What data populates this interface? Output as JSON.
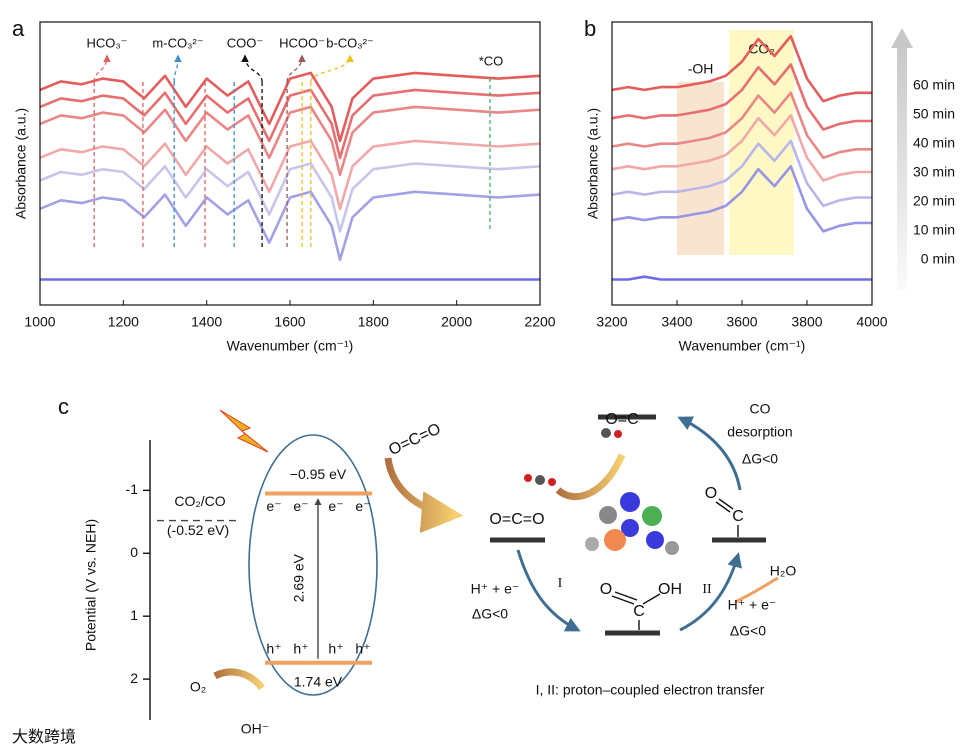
{
  "chart_data": [
    {
      "type": "line",
      "label": "a",
      "xlabel": "Wavenumber (cm⁻¹)",
      "ylabel": "Absorbance (a.u.)",
      "x": [
        1000,
        1050,
        1100,
        1150,
        1200,
        1250,
        1300,
        1350,
        1400,
        1450,
        1500,
        1550,
        1600,
        1650,
        1700,
        1720,
        1750,
        1800,
        1900,
        2000,
        2100,
        2200
      ],
      "xlim": [
        1000,
        2200
      ],
      "xticks": [
        1000,
        1200,
        1400,
        1600,
        1800,
        2000,
        2200
      ],
      "ylim": [
        0,
        10
      ],
      "annotations": [
        {
          "label": "HCO₃⁻",
          "color": "#e06060",
          "x": [
            1130,
            1247,
            1396
          ]
        },
        {
          "label": "m-CO₃²⁻",
          "color": "#3f8fd0",
          "x": [
            1322,
            1466
          ]
        },
        {
          "label": "COO⁻",
          "color": "#111111",
          "x": [
            1533
          ]
        },
        {
          "label": "HCOO⁻",
          "color": "#9a5a5a",
          "x": [
            1593
          ]
        },
        {
          "label": "b-CO₃²⁻",
          "color": "#e8c020",
          "x": [
            1629,
            1650
          ]
        },
        {
          "label": "*CO",
          "color": "#40b070",
          "x": [
            2080
          ]
        }
      ],
      "series": [
        {
          "color": "#e35d5d",
          "values": [
            7.6,
            7.9,
            7.8,
            8.0,
            7.9,
            7.3,
            8.1,
            7.0,
            8.0,
            7.4,
            7.9,
            6.4,
            8.0,
            8.2,
            7.0,
            5.8,
            7.3,
            8.0,
            8.2,
            8.1,
            8.0,
            8.1
          ]
        },
        {
          "color": "#e76f6f",
          "values": [
            7.0,
            7.3,
            7.2,
            7.4,
            7.3,
            6.7,
            7.5,
            6.4,
            7.4,
            6.8,
            7.3,
            5.8,
            7.4,
            7.6,
            6.4,
            5.2,
            6.7,
            7.4,
            7.6,
            7.5,
            7.4,
            7.5
          ]
        },
        {
          "color": "#eb8686",
          "values": [
            6.4,
            6.7,
            6.6,
            6.8,
            6.7,
            6.1,
            6.9,
            5.8,
            6.8,
            6.2,
            6.7,
            5.2,
            6.8,
            7.0,
            5.8,
            4.6,
            6.1,
            6.8,
            7.0,
            6.9,
            6.8,
            6.9
          ]
        },
        {
          "color": "#f0a8a8",
          "values": [
            5.2,
            5.5,
            5.4,
            5.6,
            5.5,
            4.9,
            5.7,
            4.6,
            5.6,
            5.0,
            5.5,
            4.0,
            5.6,
            5.8,
            4.6,
            3.4,
            4.9,
            5.6,
            5.8,
            5.7,
            5.6,
            5.7
          ]
        },
        {
          "color": "#c8c5ec",
          "values": [
            4.4,
            4.7,
            4.6,
            4.8,
            4.7,
            4.1,
            4.9,
            3.8,
            4.8,
            4.2,
            4.7,
            3.2,
            4.8,
            5.0,
            3.8,
            2.6,
            4.1,
            4.8,
            5.0,
            4.9,
            4.8,
            4.9
          ]
        },
        {
          "color": "#a3a1e6",
          "values": [
            3.4,
            3.7,
            3.6,
            3.8,
            3.7,
            3.1,
            3.9,
            2.8,
            3.8,
            3.2,
            3.7,
            2.2,
            3.8,
            4.0,
            2.8,
            1.6,
            3.1,
            3.8,
            4.0,
            3.9,
            3.8,
            3.9
          ]
        },
        {
          "color": "#6d6be6",
          "values": [
            0.9,
            0.9,
            0.9,
            0.9,
            0.9,
            0.9,
            0.9,
            0.9,
            0.9,
            0.9,
            0.9,
            0.9,
            0.9,
            0.9,
            0.9,
            0.9,
            0.9,
            0.9,
            0.9,
            0.9,
            0.9,
            0.9
          ]
        }
      ]
    },
    {
      "type": "line",
      "label": "b",
      "xlabel": "Wavenumber (cm⁻¹)",
      "ylabel": "Absorbance (a.u.)",
      "x": [
        3200,
        3250,
        3300,
        3350,
        3400,
        3450,
        3500,
        3550,
        3600,
        3650,
        3700,
        3750,
        3800,
        3850,
        3900,
        3950,
        4000
      ],
      "xlim": [
        3200,
        4000
      ],
      "xticks": [
        3200,
        3400,
        3600,
        3800,
        4000
      ],
      "ylim": [
        0,
        10
      ],
      "regions": [
        {
          "label": "-OH",
          "range": [
            3400,
            3545
          ],
          "color": "#f9e4d0"
        },
        {
          "label": "CO₂",
          "range": [
            3560,
            3760
          ],
          "color": "#fdf8c4"
        }
      ],
      "series": [
        {
          "name": "60 min",
          "color": "#e35d5d",
          "values": [
            7.6,
            7.7,
            7.6,
            7.7,
            7.7,
            7.8,
            7.9,
            8.1,
            8.6,
            9.4,
            8.8,
            9.5,
            8.0,
            7.2,
            7.4,
            7.5,
            7.5
          ]
        },
        {
          "name": "50 min",
          "color": "#e76f6f",
          "values": [
            6.6,
            6.7,
            6.6,
            6.7,
            6.7,
            6.8,
            6.9,
            7.1,
            7.6,
            8.4,
            7.8,
            8.5,
            7.0,
            6.2,
            6.4,
            6.5,
            6.5
          ]
        },
        {
          "name": "40 min",
          "color": "#eb8686",
          "values": [
            5.6,
            5.7,
            5.6,
            5.7,
            5.7,
            5.8,
            5.9,
            6.1,
            6.6,
            7.4,
            6.8,
            7.5,
            6.0,
            5.2,
            5.4,
            5.5,
            5.5
          ]
        },
        {
          "name": "30 min",
          "color": "#f0a8a8",
          "values": [
            4.8,
            4.9,
            4.8,
            4.9,
            4.9,
            5.0,
            5.1,
            5.3,
            5.8,
            6.6,
            6.0,
            6.7,
            5.2,
            4.4,
            4.6,
            4.7,
            4.7
          ]
        },
        {
          "name": "20 min",
          "color": "#b9b6ea",
          "values": [
            3.9,
            4.0,
            3.9,
            4.0,
            4.0,
            4.1,
            4.2,
            4.4,
            4.9,
            5.7,
            5.1,
            5.8,
            4.3,
            3.5,
            3.7,
            3.8,
            3.8
          ]
        },
        {
          "name": "10 min",
          "color": "#9896e4",
          "values": [
            3.0,
            3.1,
            3.0,
            3.1,
            3.1,
            3.2,
            3.3,
            3.5,
            4.0,
            4.8,
            4.2,
            4.9,
            3.4,
            2.6,
            2.8,
            2.9,
            2.9
          ]
        },
        {
          "name": "0 min",
          "color": "#6d6be6",
          "values": [
            0.9,
            0.9,
            1.0,
            0.9,
            0.9,
            0.9,
            0.9,
            0.9,
            0.9,
            0.9,
            0.9,
            0.9,
            0.9,
            0.9,
            0.9,
            0.9,
            0.9
          ]
        }
      ]
    },
    {
      "type": "energy_diagram",
      "label": "c",
      "ylabel": "Potential (V vs. NEH)",
      "ylim": [
        -1.8,
        2.65
      ],
      "yticks": [
        -1,
        0,
        1,
        2
      ],
      "levels": [
        {
          "value": -0.95,
          "label": "−0.95 eV"
        },
        {
          "value": 1.74,
          "label": "1.74 eV"
        }
      ],
      "gap": {
        "value": 2.69,
        "label": "2.69 eV"
      },
      "redox": {
        "name": "CO₂/CO",
        "value": -0.52,
        "label": "(-0.52 eV)"
      },
      "electrons": [
        "e⁻",
        "e⁻",
        "e⁻",
        "e⁻"
      ],
      "holes": [
        "h⁺",
        "h⁺",
        "h⁺",
        "h⁺"
      ],
      "oxygen": "O₂",
      "hydroxide": "OH⁻",
      "cycle_texts": [
        "O=C=O",
        "O=C=O",
        "O=C",
        "O",
        "OH",
        "C",
        "O",
        "C",
        "H⁺ + e⁻",
        "ΔG<0",
        "I",
        "II",
        "H₂O",
        "H⁺ + e⁻",
        "ΔG<0",
        "CO",
        "desorption",
        "ΔG<0",
        "I, II: proton–coupled electron transfer"
      ]
    }
  ],
  "watermark": "大数跨境"
}
